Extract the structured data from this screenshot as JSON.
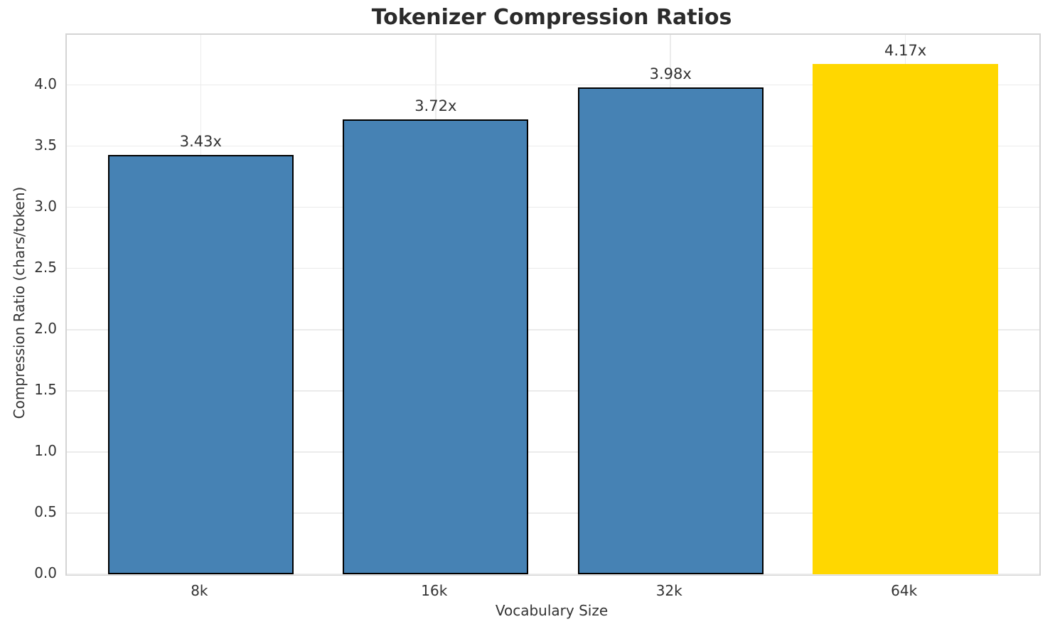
{
  "chart_data": {
    "type": "bar",
    "title": "Tokenizer Compression Ratios",
    "xlabel": "Vocabulary Size",
    "ylabel": "Compression Ratio (chars/token)",
    "categories": [
      "8k",
      "16k",
      "32k",
      "64k"
    ],
    "values": [
      3.43,
      3.72,
      3.98,
      4.17
    ],
    "bar_labels": [
      "3.43x",
      "3.72x",
      "3.98x",
      "4.17x"
    ],
    "bar_colors": [
      "#4682B4",
      "#4682B4",
      "#4682B4",
      "#FFD700"
    ],
    "bar_edge_colors": [
      "#000000",
      "#000000",
      "#000000",
      "none"
    ],
    "highlight_color": "#FFD700",
    "base_color": "#4682B4",
    "ylim": [
      0,
      4.41
    ],
    "yticks": [
      0.0,
      0.5,
      1.0,
      1.5,
      2.0,
      2.5,
      3.0,
      3.5,
      4.0
    ],
    "ytick_labels": [
      "0.0",
      "0.5",
      "1.0",
      "1.5",
      "2.0",
      "2.5",
      "3.0",
      "3.5",
      "4.0"
    ],
    "grid": true,
    "grid_axes": "both",
    "legend": "none",
    "bar_width_fraction": 0.79
  }
}
